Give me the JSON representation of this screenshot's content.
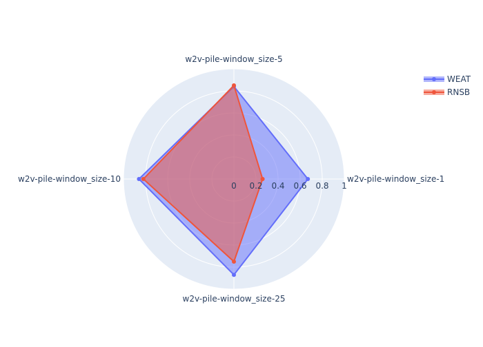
{
  "chart_data": {
    "type": "radar",
    "categories": [
      "w2v-pile-window_size-1",
      "w2v-pile-window_size-5",
      "w2v-pile-window_size-10",
      "w2v-pile-window_size-25"
    ],
    "radial_range": [
      0,
      1
    ],
    "radial_ticks": [
      "0",
      "0.2",
      "0.4",
      "0.6",
      "0.8",
      "1"
    ],
    "series": [
      {
        "name": "WEAT",
        "values": [
          0.67,
          0.84,
          0.86,
          0.87
        ],
        "color": "#636efa"
      },
      {
        "name": "RNSB",
        "values": [
          0.26,
          0.85,
          0.82,
          0.75
        ],
        "color": "#ef553b"
      }
    ],
    "grid": true,
    "legend": "top-right",
    "background_color": "#e5ecf6"
  }
}
